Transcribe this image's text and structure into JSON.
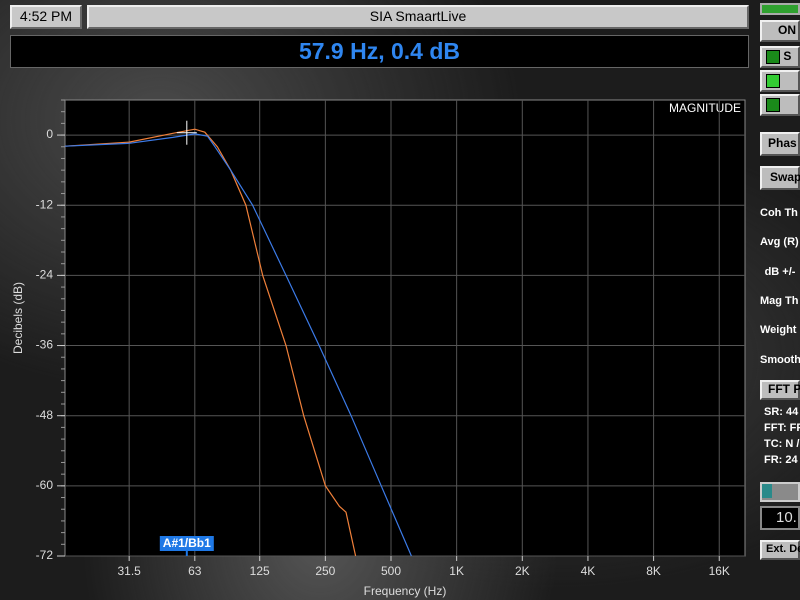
{
  "header": {
    "time": "4:52 PM",
    "title": "SIA SmaartLive"
  },
  "readout": "57.9 Hz, 0.4 dB",
  "chart_data": {
    "type": "line",
    "label": "MAGNITUDE",
    "xlabel": "Frequency (Hz)",
    "ylabel": "Decibels (dB)",
    "xscale": "log",
    "xlim": [
      16,
      21000
    ],
    "ylim": [
      -72,
      6
    ],
    "xticks": [
      31.5,
      63,
      125,
      250,
      500,
      {
        "value": 1000,
        "label": "1K"
      },
      {
        "value": 2000,
        "label": "2K"
      },
      {
        "value": 4000,
        "label": "4K"
      },
      {
        "value": 8000,
        "label": "8K"
      },
      {
        "value": 16000,
        "label": "16K"
      }
    ],
    "yticks": [
      0,
      -12,
      -24,
      -36,
      -48,
      -60,
      -72
    ],
    "grid": true,
    "series": [
      {
        "color": "#f0803a",
        "x": [
          16,
          31.5,
          50,
          63,
          70,
          80,
          92,
          108,
          129,
          165,
          199,
          250,
          290,
          311,
          344
        ],
        "values": [
          -1.9,
          -1.2,
          0.3,
          1.0,
          0.5,
          -2,
          -6,
          -12,
          -24,
          -36,
          -48,
          -60,
          -63.5,
          -64.5,
          -72
        ]
      },
      {
        "color": "#3c7be8",
        "x": [
          16,
          31.5,
          50,
          63,
          72,
          78,
          92,
          116,
          165,
          234,
          328,
          451,
          620
        ],
        "values": [
          -1.9,
          -1.4,
          -0.4,
          0.2,
          -0.2,
          -2,
          -6,
          -12,
          -24,
          -36,
          -48,
          -60,
          -72
        ]
      }
    ],
    "cursor": {
      "x": 57.9,
      "y": 0.4,
      "label": "A#1/Bb1"
    }
  },
  "sidebar": {
    "on": "ON",
    "check": "S",
    "phase": "Phas",
    "swap": "Swap",
    "labels": [
      "Coh Th",
      "Avg (R)",
      "dB +/-",
      "Mag Th",
      "Weight",
      "Smooth"
    ],
    "fft": "FFT P",
    "info": [
      "SR: 44",
      "FFT: FF",
      "TC: N /",
      "FR: 24"
    ],
    "field": "10.",
    "ext": "Ext. De"
  }
}
